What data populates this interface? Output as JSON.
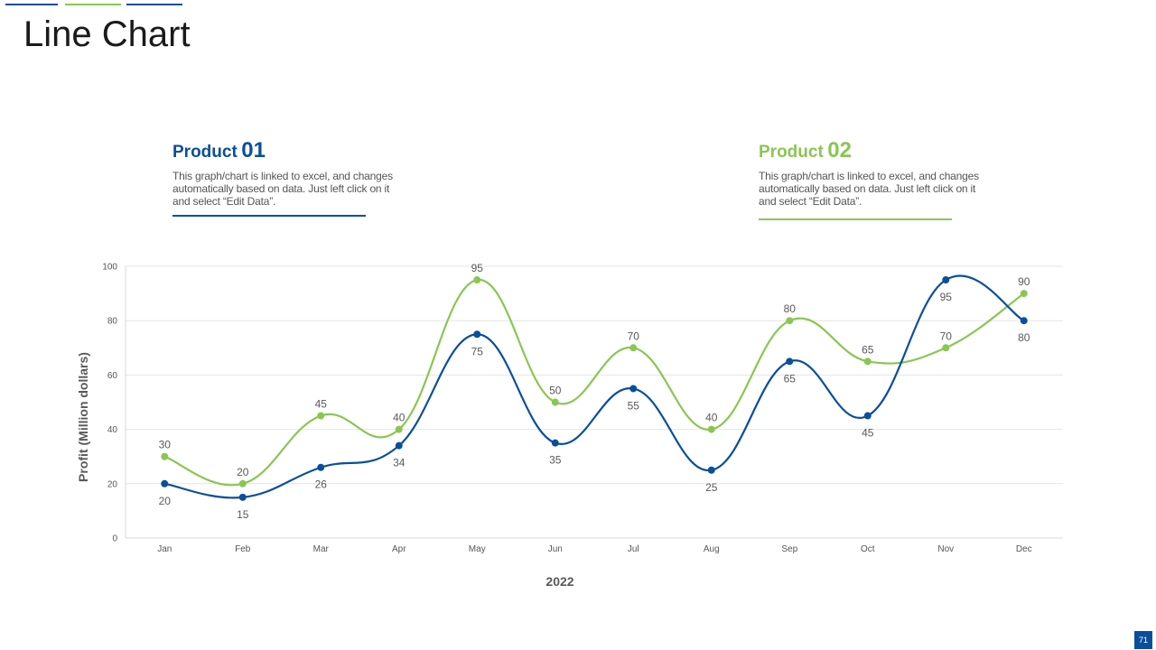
{
  "page": {
    "title": "Line Chart",
    "page_number": "71"
  },
  "products": [
    {
      "name": "Product",
      "number": "01",
      "description": "This graph/chart is linked to excel, and changes automatically based on data. Just left click on it and select “Edit Data”.",
      "color": "#0a4f9c"
    },
    {
      "name": "Product",
      "number": "02",
      "description": "This graph/chart is linked to excel, and changes automatically based on data. Just left click on it and select “Edit Data”.",
      "color": "#8ac652"
    }
  ],
  "chart_data": {
    "type": "line",
    "title": "",
    "xlabel": "2022",
    "ylabel": "Profit  (Million dollars)",
    "ylim": [
      0,
      100
    ],
    "yticks": [
      0,
      20,
      40,
      60,
      80,
      100
    ],
    "grid": true,
    "smooth": true,
    "categories": [
      "Jan",
      "Feb",
      "Mar",
      "Apr",
      "May",
      "Jun",
      "Jul",
      "Aug",
      "Sep",
      "Oct",
      "Nov",
      "Dec"
    ],
    "series": [
      {
        "name": "Product 01",
        "color": "#0a4f9c",
        "label_position": "below",
        "values": [
          20,
          15,
          26,
          34,
          75,
          35,
          55,
          25,
          65,
          45,
          95,
          80
        ]
      },
      {
        "name": "Product 02",
        "color": "#8ac652",
        "label_position": "above",
        "values": [
          30,
          20,
          45,
          40,
          95,
          50,
          70,
          40,
          80,
          65,
          70,
          90
        ]
      }
    ]
  }
}
